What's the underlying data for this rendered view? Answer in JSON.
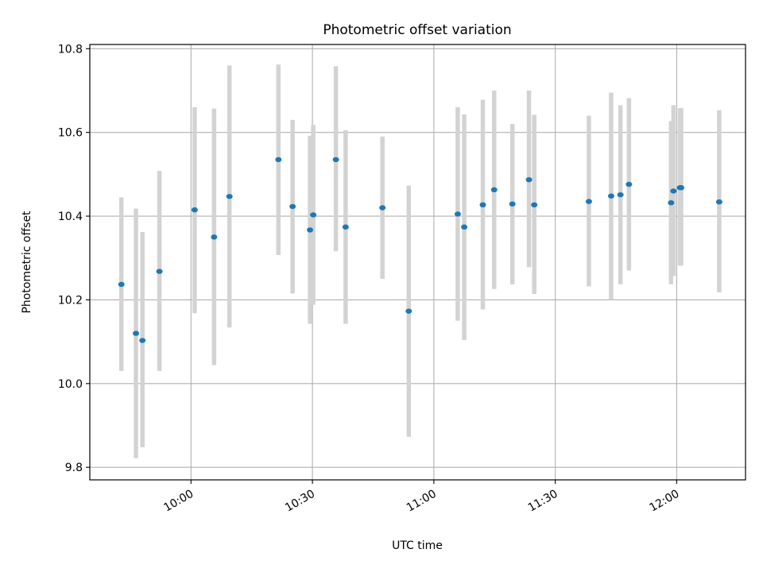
{
  "chart_data": {
    "type": "scatter",
    "title": "Photometric offset variation",
    "xlabel": "UTC time",
    "ylabel": "Photometric offset",
    "grid": true,
    "xlim": [
      "09:35",
      "12:17"
    ],
    "ylim": [
      9.77,
      10.81
    ],
    "xticks": [
      "10:00",
      "10:30",
      "11:00",
      "11:30",
      "12:00"
    ],
    "yticks": [
      "9.8",
      "10.0",
      "10.2",
      "10.4",
      "10.6",
      "10.8"
    ],
    "colors": {
      "point": "#1f77b4",
      "error_bar": "#d3d3d3"
    },
    "series": [
      {
        "points": [
          {
            "time": "09:42:48",
            "y": 10.237,
            "low": 10.03,
            "high": 10.445
          },
          {
            "time": "09:46:24",
            "y": 10.12,
            "low": 9.822,
            "high": 10.418
          },
          {
            "time": "09:48:00",
            "y": 10.103,
            "low": 9.848,
            "high": 10.362
          },
          {
            "time": "09:52:12",
            "y": 10.268,
            "low": 10.03,
            "high": 10.508
          },
          {
            "time": "10:00:54",
            "y": 10.415,
            "low": 10.168,
            "high": 10.66
          },
          {
            "time": "10:05:42",
            "y": 10.35,
            "low": 10.044,
            "high": 10.657
          },
          {
            "time": "10:09:30",
            "y": 10.447,
            "low": 10.134,
            "high": 10.76
          },
          {
            "time": "10:21:36",
            "y": 10.535,
            "low": 10.307,
            "high": 10.762
          },
          {
            "time": "10:25:06",
            "y": 10.423,
            "low": 10.215,
            "high": 10.63
          },
          {
            "time": "10:29:24",
            "y": 10.367,
            "low": 10.143,
            "high": 10.592
          },
          {
            "time": "10:30:12",
            "y": 10.403,
            "low": 10.188,
            "high": 10.618
          },
          {
            "time": "10:35:48",
            "y": 10.535,
            "low": 10.316,
            "high": 10.758
          },
          {
            "time": "10:38:12",
            "y": 10.374,
            "low": 10.143,
            "high": 10.605
          },
          {
            "time": "10:47:18",
            "y": 10.42,
            "low": 10.25,
            "high": 10.59
          },
          {
            "time": "10:53:48",
            "y": 10.173,
            "low": 9.873,
            "high": 10.473
          },
          {
            "time": "11:05:54",
            "y": 10.405,
            "low": 10.15,
            "high": 10.66
          },
          {
            "time": "11:07:30",
            "y": 10.374,
            "low": 10.104,
            "high": 10.643
          },
          {
            "time": "11:12:06",
            "y": 10.427,
            "low": 10.177,
            "high": 10.678
          },
          {
            "time": "11:14:54",
            "y": 10.463,
            "low": 10.226,
            "high": 10.7
          },
          {
            "time": "11:19:24",
            "y": 10.429,
            "low": 10.237,
            "high": 10.62
          },
          {
            "time": "11:23:30",
            "y": 10.487,
            "low": 10.278,
            "high": 10.7
          },
          {
            "time": "11:24:48",
            "y": 10.427,
            "low": 10.214,
            "high": 10.642
          },
          {
            "time": "11:38:18",
            "y": 10.435,
            "low": 10.232,
            "high": 10.64
          },
          {
            "time": "11:43:48",
            "y": 10.448,
            "low": 10.2,
            "high": 10.695
          },
          {
            "time": "11:46:06",
            "y": 10.451,
            "low": 10.237,
            "high": 10.665
          },
          {
            "time": "11:48:12",
            "y": 10.476,
            "low": 10.27,
            "high": 10.682
          },
          {
            "time": "11:58:36",
            "y": 10.432,
            "low": 10.237,
            "high": 10.627
          },
          {
            "time": "11:59:12",
            "y": 10.46,
            "low": 10.257,
            "high": 10.665
          },
          {
            "time": "12:00:48",
            "y": 10.468,
            "low": 10.282,
            "high": 10.658
          },
          {
            "time": "12:01:06",
            "y": 10.468,
            "low": 10.282,
            "high": 10.658
          },
          {
            "time": "12:10:30",
            "y": 10.434,
            "low": 10.218,
            "high": 10.653
          }
        ]
      }
    ]
  }
}
